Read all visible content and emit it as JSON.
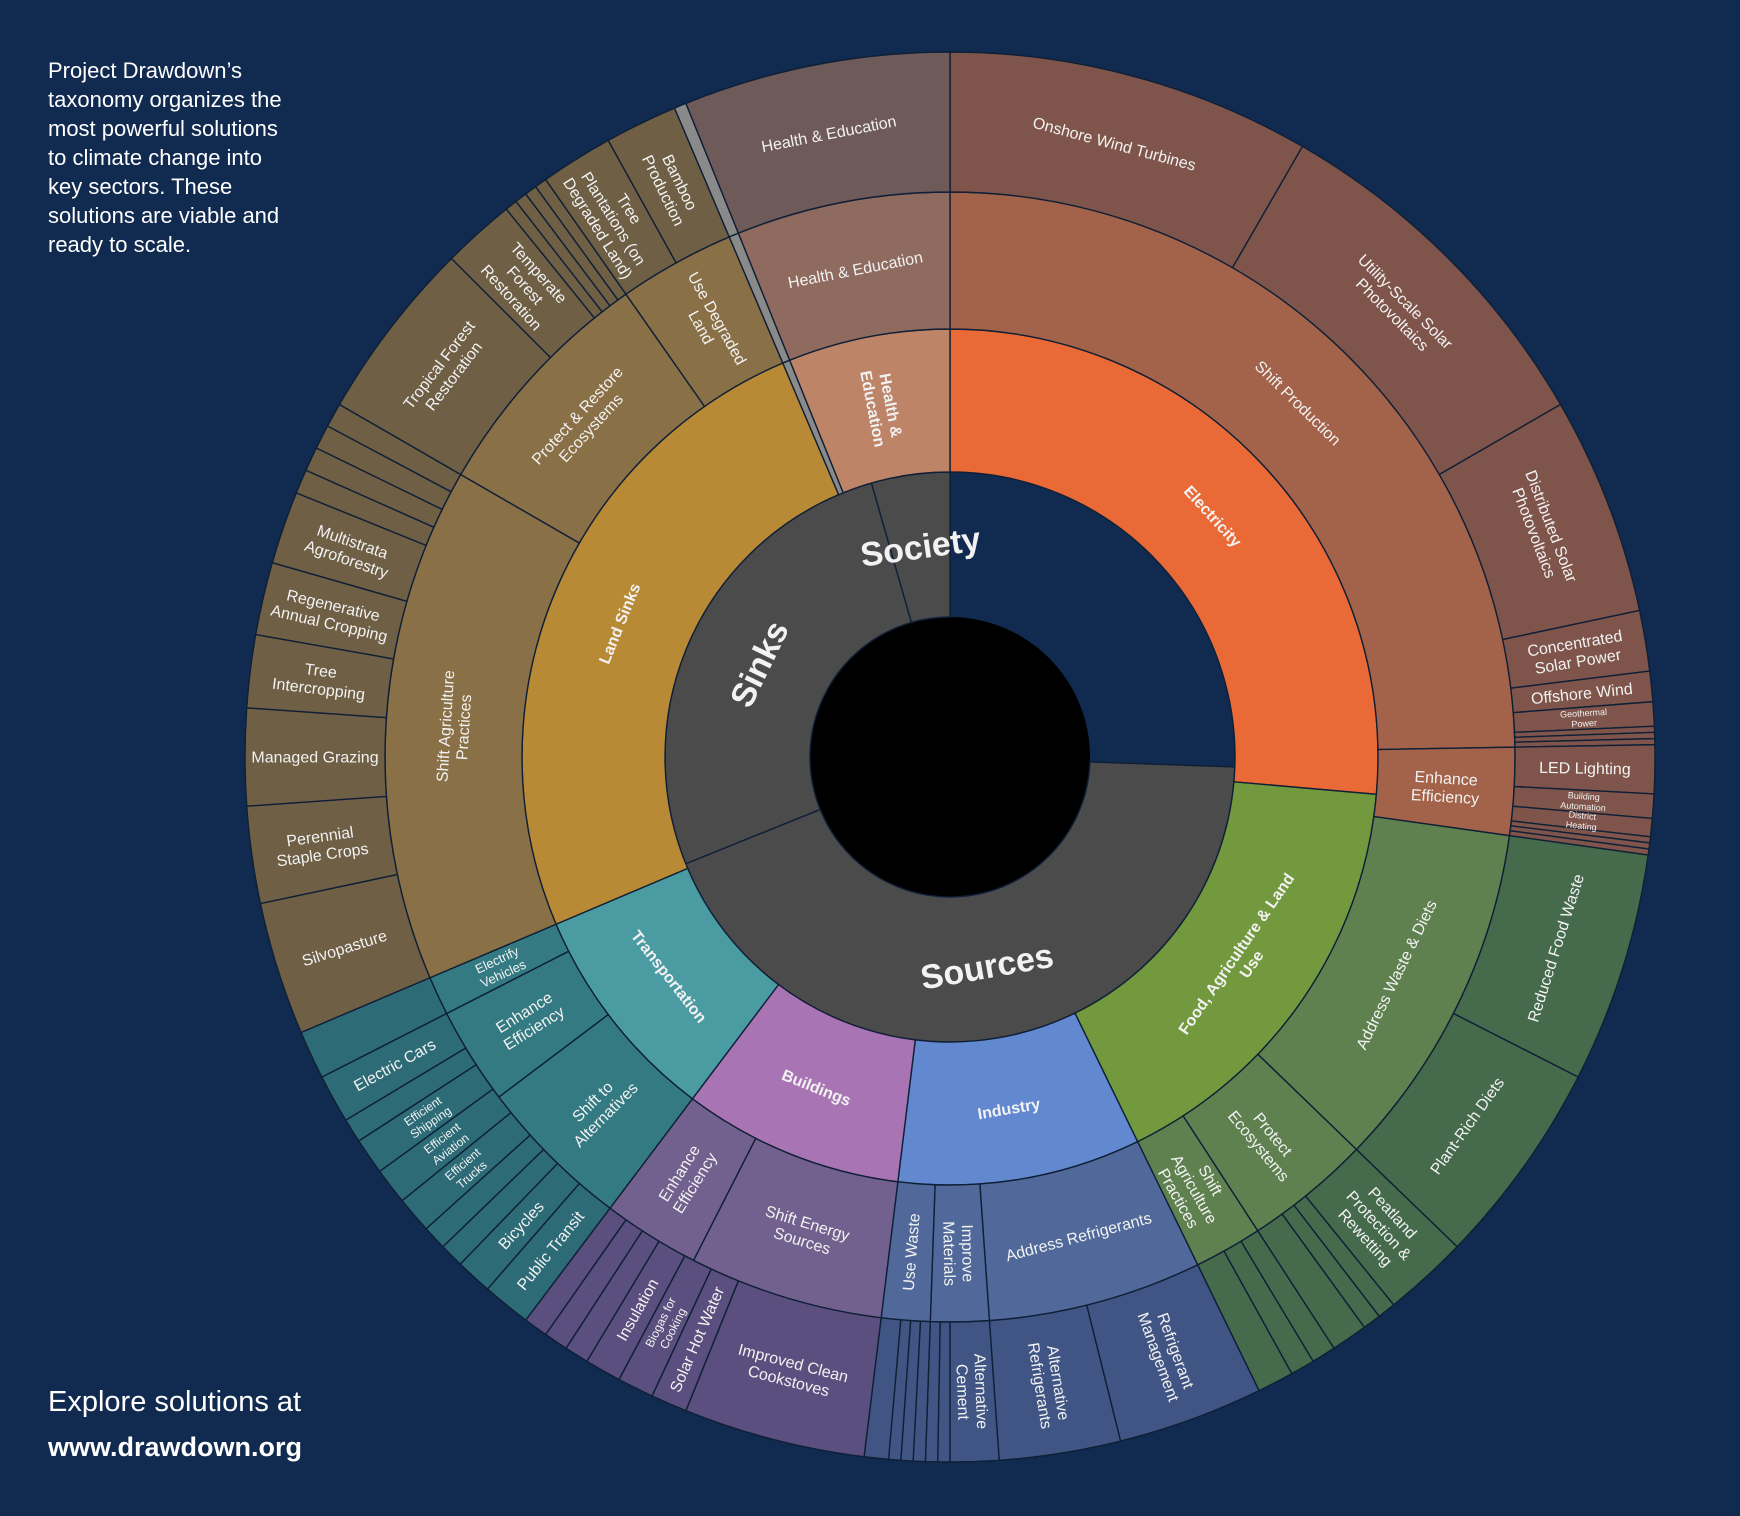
{
  "intro_text": "Project Drawdown’s taxonomy organizes the most powerful solutions to climate change into key sectors. These solutions are viable and ready to scale.",
  "explore_text": "Explore solutions at",
  "url_text": "www.drawdown.org",
  "chart_data": {
    "type": "sunburst",
    "center_color": "#000000",
    "rings": {
      "goals": [
        {
          "label": "Sources",
          "start": 92,
          "end": 248,
          "color": "#4b4b4b"
        },
        {
          "label": "Sinks",
          "start": 248,
          "end": 344,
          "color": "#4b4b4b"
        },
        {
          "label": "Society",
          "start": 344,
          "end": 360,
          "color": "#4b4b4b"
        }
      ],
      "sectors": [
        {
          "label": "Electricity",
          "start": 0,
          "end": 95,
          "color": "#e96a36"
        },
        {
          "label": "Food, Agriculture & Land Use",
          "start": 95,
          "end": 154,
          "color": "#72993e"
        },
        {
          "label": "Industry",
          "start": 154,
          "end": 187,
          "color": "#6288cf"
        },
        {
          "label": "Buildings",
          "start": 187,
          "end": 217,
          "color": "#a874b4"
        },
        {
          "label": "Transportation",
          "start": 217,
          "end": 247,
          "color": "#4a9ba2"
        },
        {
          "label": "Land Sinks",
          "start": 247,
          "end": 337,
          "color": "#b98a36"
        },
        {
          "label": "",
          "start": 337,
          "end": 338,
          "color": "#8a8a8a"
        },
        {
          "label": "Health & Education",
          "start": 338,
          "end": 360,
          "color": "#bd8468"
        }
      ],
      "strategies": [
        {
          "label": "Shift Production",
          "start": 0,
          "end": 89,
          "color": "#a3634a"
        },
        {
          "label": "Enhance Efficiency",
          "start": 89,
          "end": 98,
          "color": "#a3634a"
        },
        {
          "label": "Address Waste & Diets",
          "start": 98,
          "end": 134,
          "color": "#5f8150"
        },
        {
          "label": "Protect Ecosystems",
          "start": 134,
          "end": 147,
          "color": "#5f8150"
        },
        {
          "label": "Shift Agriculture Practices",
          "start": 147,
          "end": 154,
          "color": "#5f8150"
        },
        {
          "label": "Address Refrigerants",
          "start": 154,
          "end": 176,
          "color": "#50699a"
        },
        {
          "label": "Improve Materials",
          "start": 176,
          "end": 182,
          "color": "#50699a"
        },
        {
          "label": "Use Waste",
          "start": 182,
          "end": 187,
          "color": "#50699a"
        },
        {
          "label": "Shift Energy Sources",
          "start": 187,
          "end": 207,
          "color": "#72618e"
        },
        {
          "label": "Enhance Efficiency",
          "start": 207,
          "end": 217,
          "color": "#72618e"
        },
        {
          "label": "Shift to Alternatives",
          "start": 217,
          "end": 233,
          "color": "#347a82"
        },
        {
          "label": "Enhance Efficiency",
          "start": 233,
          "end": 243,
          "color": "#347a82"
        },
        {
          "label": "Electrify Vehicles",
          "start": 243,
          "end": 247,
          "color": "#347a82"
        },
        {
          "label": "Shift Agriculture Practices",
          "start": 247,
          "end": 300,
          "color": "#8a7047"
        },
        {
          "label": "Protect & Restore Ecosystems",
          "start": 300,
          "end": 325,
          "color": "#8a7047"
        },
        {
          "label": "Use Degraded Land",
          "start": 325,
          "end": 337,
          "color": "#8a7047"
        },
        {
          "label": "",
          "start": 337,
          "end": 338,
          "color": "#8a8a8a"
        },
        {
          "label": "Health & Education",
          "start": 338,
          "end": 360,
          "color": "#8f6a5f"
        }
      ],
      "solutions": [
        {
          "label": "Onshore Wind Turbines",
          "start": 0,
          "end": 30,
          "color": "#7f554b"
        },
        {
          "label": "Utility-Scale Solar Photovoltaics",
          "start": 30,
          "end": 60,
          "color": "#7f554b"
        },
        {
          "label": "Distributed Solar Photovoltaics",
          "start": 60,
          "end": 78,
          "color": "#7f554b"
        },
        {
          "label": "Concentrated Solar Power",
          "start": 78,
          "end": 83,
          "color": "#7f554b"
        },
        {
          "label": "Offshore Wind",
          "start": 83,
          "end": 85.5,
          "color": "#7f554b"
        },
        {
          "label": "Geothermal Power",
          "start": 85.5,
          "end": 87.5,
          "color": "#7f554b"
        },
        {
          "label": "",
          "start": 87.5,
          "end": 88,
          "color": "#7f554b"
        },
        {
          "label": "",
          "start": 88,
          "end": 88.5,
          "color": "#7f554b"
        },
        {
          "label": "",
          "start": 88.5,
          "end": 89,
          "color": "#7f554b"
        },
        {
          "label": "LED Lighting",
          "start": 89,
          "end": 93,
          "color": "#7f554b"
        },
        {
          "label": "Building Automation",
          "start": 93,
          "end": 95,
          "color": "#7f554b"
        },
        {
          "label": "District Heating",
          "start": 95,
          "end": 96.5,
          "color": "#7f554b"
        },
        {
          "label": "",
          "start": 96.5,
          "end": 97,
          "color": "#7f554b"
        },
        {
          "label": "",
          "start": 97,
          "end": 97.5,
          "color": "#7f554b"
        },
        {
          "label": "",
          "start": 97.5,
          "end": 98,
          "color": "#7f554b"
        },
        {
          "label": "Reduced Food Waste",
          "start": 98,
          "end": 117,
          "color": "#456a4c"
        },
        {
          "label": "Plant-Rich Diets",
          "start": 117,
          "end": 134,
          "color": "#456a4c"
        },
        {
          "label": "Peatland Protection & Rewetting",
          "start": 134,
          "end": 141,
          "color": "#456a4c"
        },
        {
          "label": "",
          "start": 141,
          "end": 142.5,
          "color": "#456a4c"
        },
        {
          "label": "",
          "start": 142.5,
          "end": 144,
          "color": "#456a4c"
        },
        {
          "label": "",
          "start": 144,
          "end": 147,
          "color": "#456a4c"
        },
        {
          "label": "",
          "start": 147,
          "end": 149,
          "color": "#456a4c"
        },
        {
          "label": "",
          "start": 149,
          "end": 151,
          "color": "#456a4c"
        },
        {
          "label": "",
          "start": 151,
          "end": 154,
          "color": "#456a4c"
        },
        {
          "label": "Refrigerant Management",
          "start": 154,
          "end": 166,
          "color": "#415584"
        },
        {
          "label": "Alternative Refrigerants",
          "start": 166,
          "end": 176,
          "color": "#415584"
        },
        {
          "label": "Alternative Cement",
          "start": 176,
          "end": 180,
          "color": "#415584"
        },
        {
          "label": "",
          "start": 180,
          "end": 181,
          "color": "#415584"
        },
        {
          "label": "",
          "start": 181,
          "end": 182,
          "color": "#415584"
        },
        {
          "label": "",
          "start": 182,
          "end": 183,
          "color": "#415584"
        },
        {
          "label": "",
          "start": 183,
          "end": 184,
          "color": "#415584"
        },
        {
          "label": "",
          "start": 184,
          "end": 185,
          "color": "#415584"
        },
        {
          "label": "",
          "start": 185,
          "end": 187,
          "color": "#415584"
        },
        {
          "label": "Improved Clean Cookstoves",
          "start": 187,
          "end": 202,
          "color": "#5a4f7e"
        },
        {
          "label": "Solar Hot Water",
          "start": 202,
          "end": 205,
          "color": "#5a4f7e"
        },
        {
          "label": "Biogas for Cooking",
          "start": 205,
          "end": 208,
          "color": "#5a4f7e"
        },
        {
          "label": "Insulation",
          "start": 208,
          "end": 211,
          "color": "#5a4f7e"
        },
        {
          "label": "",
          "start": 211,
          "end": 213,
          "color": "#5a4f7e"
        },
        {
          "label": "",
          "start": 213,
          "end": 215,
          "color": "#5a4f7e"
        },
        {
          "label": "",
          "start": 215,
          "end": 217,
          "color": "#5a4f7e"
        },
        {
          "label": "Public Transit",
          "start": 217,
          "end": 221,
          "color": "#2d6b77"
        },
        {
          "label": "Bicycles",
          "start": 221,
          "end": 224,
          "color": "#2d6b77"
        },
        {
          "label": "",
          "start": 224,
          "end": 226,
          "color": "#2d6b77"
        },
        {
          "label": "",
          "start": 226,
          "end": 228,
          "color": "#2d6b77"
        },
        {
          "label": "Efficient Trucks",
          "start": 228,
          "end": 231,
          "color": "#2d6b77"
        },
        {
          "label": "Efficient Aviation",
          "start": 231,
          "end": 234,
          "color": "#2d6b77"
        },
        {
          "label": "Efficient Shipping",
          "start": 234,
          "end": 237,
          "color": "#2d6b77"
        },
        {
          "label": "",
          "start": 237,
          "end": 239,
          "color": "#2d6b77"
        },
        {
          "label": "Electric Cars",
          "start": 239,
          "end": 243,
          "color": "#2d6b77"
        },
        {
          "label": "",
          "start": 243,
          "end": 247,
          "color": "#2d6b77"
        },
        {
          "label": "Silvopasture",
          "start": 247,
          "end": 258,
          "color": "#6e5f45"
        },
        {
          "label": "Perennial Staple Crops",
          "start": 258,
          "end": 266,
          "color": "#6e5f45"
        },
        {
          "label": "Managed Grazing",
          "start": 266,
          "end": 274,
          "color": "#6e5f45"
        },
        {
          "label": "Tree Intercropping",
          "start": 274,
          "end": 280,
          "color": "#6e5f45"
        },
        {
          "label": "Regenerative Annual Cropping",
          "start": 280,
          "end": 286,
          "color": "#6e5f45"
        },
        {
          "label": "Multistrata Agroforestry",
          "start": 286,
          "end": 292,
          "color": "#6e5f45"
        },
        {
          "label": "",
          "start": 292,
          "end": 294,
          "color": "#6e5f45"
        },
        {
          "label": "",
          "start": 294,
          "end": 296,
          "color": "#6e5f45"
        },
        {
          "label": "",
          "start": 296,
          "end": 298,
          "color": "#6e5f45"
        },
        {
          "label": "",
          "start": 298,
          "end": 300,
          "color": "#6e5f45"
        },
        {
          "label": "Tropical Forest Restoration",
          "start": 300,
          "end": 315,
          "color": "#6e5f45"
        },
        {
          "label": "Temperate Forest Restoration",
          "start": 315,
          "end": 321,
          "color": "#6e5f45"
        },
        {
          "label": "",
          "start": 321,
          "end": 322,
          "color": "#6e5f45"
        },
        {
          "label": "",
          "start": 322,
          "end": 323,
          "color": "#6e5f45"
        },
        {
          "label": "",
          "start": 323,
          "end": 324,
          "color": "#6e5f45"
        },
        {
          "label": "",
          "start": 324,
          "end": 325,
          "color": "#6e5f45"
        },
        {
          "label": "Tree Plantations (on Degraded Land)",
          "start": 325,
          "end": 331,
          "color": "#6e5f45"
        },
        {
          "label": "Bamboo Production",
          "start": 331,
          "end": 337,
          "color": "#6e5f45"
        },
        {
          "label": "",
          "start": 337,
          "end": 338,
          "color": "#8a8a8a"
        },
        {
          "label": "Health & Education",
          "start": 338,
          "end": 360,
          "color": "#6e5a58"
        }
      ]
    }
  }
}
